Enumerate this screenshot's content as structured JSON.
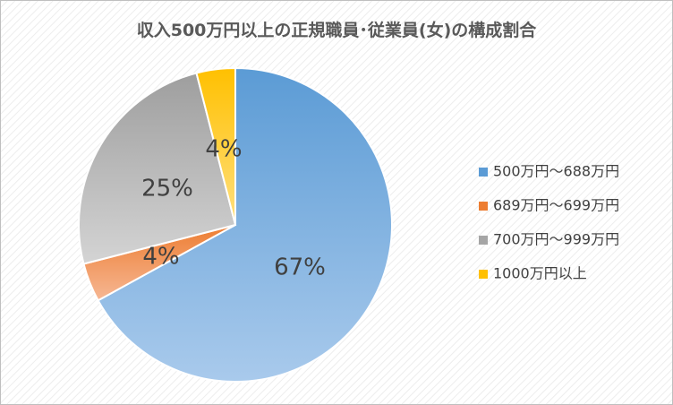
{
  "chart_data": {
    "type": "pie",
    "title": "収入500万円以上の正規職員･従業員(女)の構成割合",
    "categories": [
      "500万円～688万円",
      "689万円～699万円",
      "700万円～999万円",
      "1000万円以上"
    ],
    "values": [
      67,
      4,
      25,
      4
    ],
    "data_labels": [
      "67%",
      "4%",
      "25%",
      "4%"
    ],
    "colors": [
      "#5B9BD5",
      "#ED7D31",
      "#A5A5A5",
      "#FFC000"
    ],
    "legend_position": "right",
    "start_angle": "12 o'clock",
    "direction": "clockwise"
  }
}
